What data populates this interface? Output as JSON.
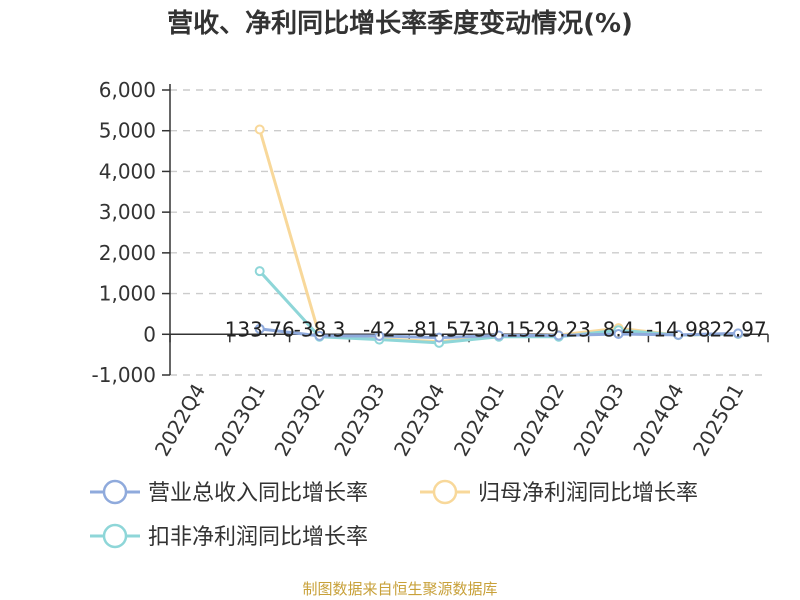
{
  "title": "营收、净利同比增长率季度变动情况(%)",
  "source": "制图数据来自恒生聚源数据库",
  "chart_data": {
    "type": "line",
    "title": "营收、净利同比增长率季度变动情况(%)",
    "categories": [
      "2022Q4",
      "2023Q1",
      "2023Q2",
      "2023Q3",
      "2023Q4",
      "2024Q1",
      "2024Q2",
      "2024Q3",
      "2024Q4",
      "2025Q1"
    ],
    "ylim": [
      -1000,
      6000
    ],
    "yticks": [
      6000,
      5000,
      4000,
      3000,
      2000,
      1000,
      0,
      -1000
    ],
    "ytick_labels": [
      "6,000",
      "5,000",
      "4,000",
      "3,000",
      "2,000",
      "1,000",
      "0",
      "-1,000"
    ],
    "grid": true,
    "legend_position": "bottom",
    "series": [
      {
        "name": "营业总收入同比增长率",
        "color": "#8faadc",
        "values": [
          null,
          133.76,
          -38.3,
          -42,
          -81.57,
          -30.15,
          -29.23,
          8.4,
          -14.98,
          22.97
        ],
        "labels": [
          null,
          "133.76",
          "-38.3",
          "-42",
          "-81.57",
          "-30.15",
          "-29.23",
          "8.4",
          "-14.98",
          "22.97"
        ]
      },
      {
        "name": "归母净利润同比增长率",
        "color": "#f8d89a",
        "values": [
          null,
          5030,
          -40,
          -110,
          -180,
          -50,
          -20,
          150,
          -20,
          10
        ]
      },
      {
        "name": "扣非净利润同比增长率",
        "color": "#8ed6d8",
        "values": [
          null,
          1550,
          -60,
          -130,
          -210,
          -60,
          -60,
          100,
          -20,
          10
        ]
      }
    ]
  },
  "legend": [
    {
      "label": "营业总收入同比增长率",
      "color": "#8faadc"
    },
    {
      "label": "归母净利润同比增长率",
      "color": "#f8d89a"
    },
    {
      "label": "扣非净利润同比增长率",
      "color": "#8ed6d8"
    }
  ]
}
